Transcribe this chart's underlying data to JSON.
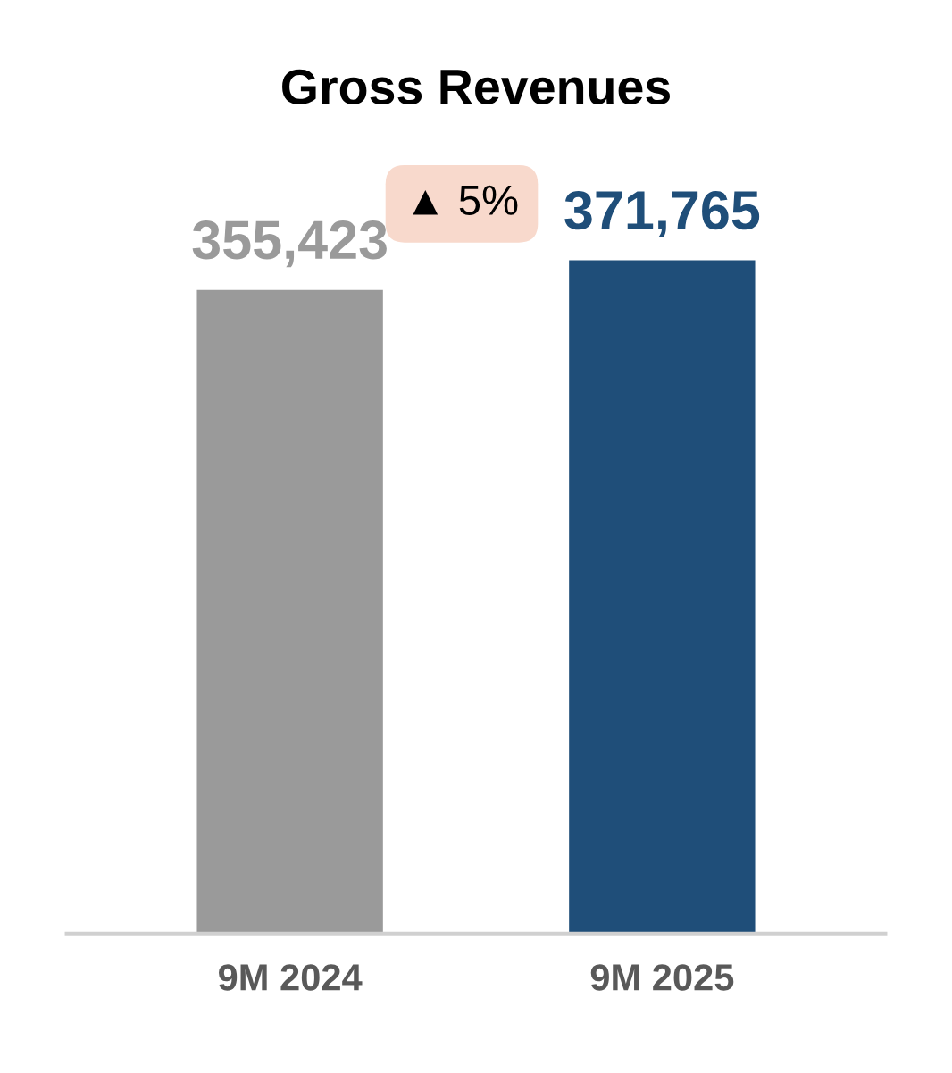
{
  "chart_data": {
    "type": "bar",
    "title": "Gross Revenues",
    "categories": [
      "9M 2024",
      "9M 2025"
    ],
    "values": [
      355423,
      371765
    ],
    "colors": [
      "#9a9a9a",
      "#1f4e79"
    ],
    "value_labels": [
      "355,423",
      "371,765"
    ],
    "annotations": [
      "▲ 5%"
    ],
    "grid": false,
    "legend": false
  }
}
